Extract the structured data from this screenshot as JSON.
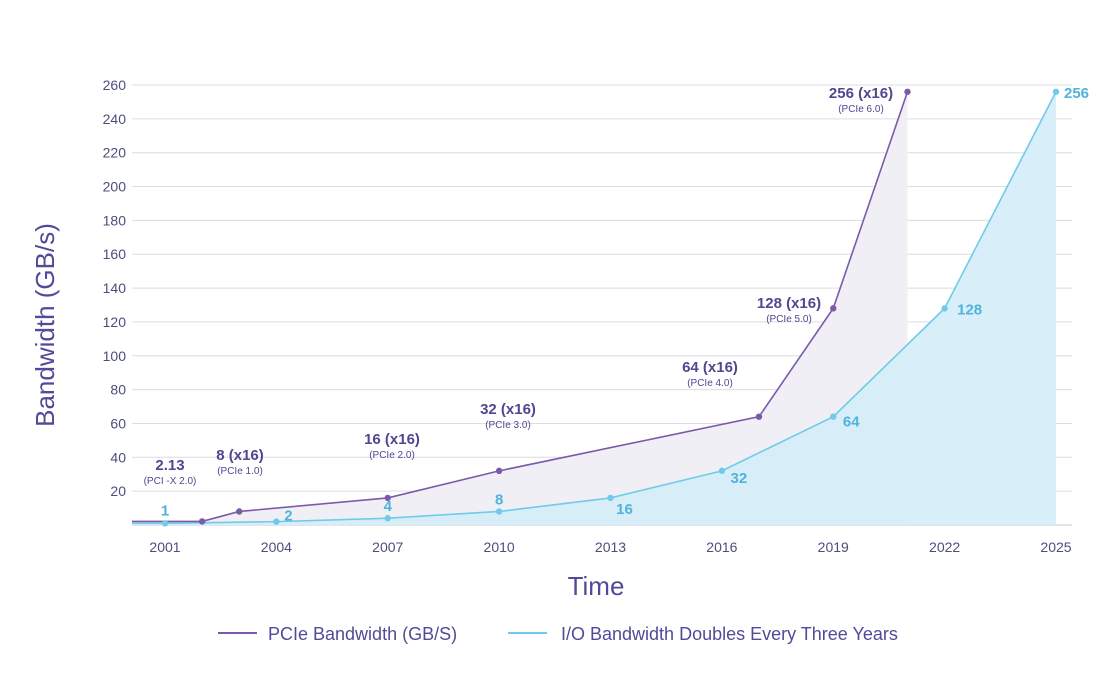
{
  "chart_data": {
    "type": "line",
    "title": "",
    "xlabel": "Time",
    "ylabel": "Bandwidth (GB/s)",
    "xlim": [
      2000,
      2025.5
    ],
    "ylim": [
      0,
      260
    ],
    "x_ticks": [
      2001,
      2004,
      2007,
      2010,
      2013,
      2016,
      2019,
      2022,
      2025
    ],
    "y_ticks": [
      20,
      40,
      60,
      80,
      100,
      120,
      140,
      160,
      180,
      200,
      220,
      240,
      260
    ],
    "grid": true,
    "legend_position": "bottom",
    "colors": {
      "pcie": "#7a5ba8",
      "io": "#6fcbe8",
      "pcie_fill": "#f1eff6",
      "io_fill": "#d5eef8",
      "axis_text": "#4b4f7a",
      "title_text": "#4f4b98"
    },
    "series": [
      {
        "name": "PCIe Bandwidth (GB/S)",
        "points": [
          {
            "x": 2002,
            "y": 2.13,
            "label": "2.13",
            "sublabel": "(PCI -X 2.0)"
          },
          {
            "x": 2003,
            "y": 8,
            "label": "8 (x16)",
            "sublabel": "(PCIe 1.0)"
          },
          {
            "x": 2007,
            "y": 16,
            "label": "16 (x16)",
            "sublabel": "(PCIe 2.0)"
          },
          {
            "x": 2010,
            "y": 32,
            "label": "32 (x16)",
            "sublabel": "(PCIe 3.0)"
          },
          {
            "x": 2017,
            "y": 64,
            "label": "64 (x16)",
            "sublabel": "(PCIe 4.0)"
          },
          {
            "x": 2019,
            "y": 128,
            "label": "128 (x16)",
            "sublabel": "(PCIe 5.0)"
          },
          {
            "x": 2021,
            "y": 256,
            "label": "256 (x16)",
            "sublabel": "(PCIe 6.0)"
          }
        ]
      },
      {
        "name": "I/O Bandwidth Doubles Every Three Years",
        "points": [
          {
            "x": 2001,
            "y": 1,
            "label": "1"
          },
          {
            "x": 2004,
            "y": 2,
            "label": "2"
          },
          {
            "x": 2007,
            "y": 4,
            "label": "4"
          },
          {
            "x": 2010,
            "y": 8,
            "label": "8"
          },
          {
            "x": 2013,
            "y": 16,
            "label": "16"
          },
          {
            "x": 2016,
            "y": 32,
            "label": "32"
          },
          {
            "x": 2019,
            "y": 64,
            "label": "64"
          },
          {
            "x": 2022,
            "y": 128,
            "label": "128"
          },
          {
            "x": 2025,
            "y": 256,
            "label": "256"
          }
        ]
      }
    ]
  }
}
